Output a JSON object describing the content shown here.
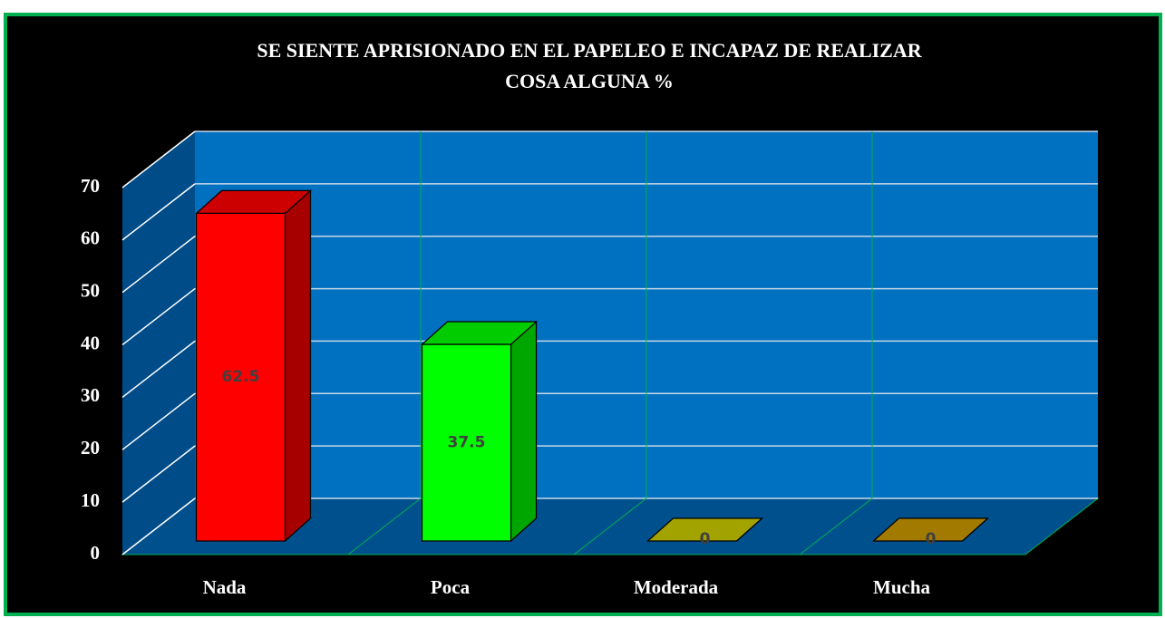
{
  "chart_data": {
    "type": "bar3d",
    "title": [
      "SE SIENTE APRISIONADO EN EL PAPELEO E INCAPAZ DE REALIZAR",
      "COSA ALGUNA %"
    ],
    "categories": [
      "Nada",
      "Poca",
      "Moderada",
      "Mucha"
    ],
    "series": [
      {
        "values": [
          62.5,
          37.5,
          0,
          0
        ],
        "colors": [
          "#ff0000",
          "#00ff00",
          "#cccc00",
          "#cc9900"
        ]
      }
    ],
    "ylim": [
      0,
      70
    ],
    "yticks": [
      0,
      10,
      20,
      30,
      40,
      50,
      60,
      70
    ],
    "grid": true
  }
}
